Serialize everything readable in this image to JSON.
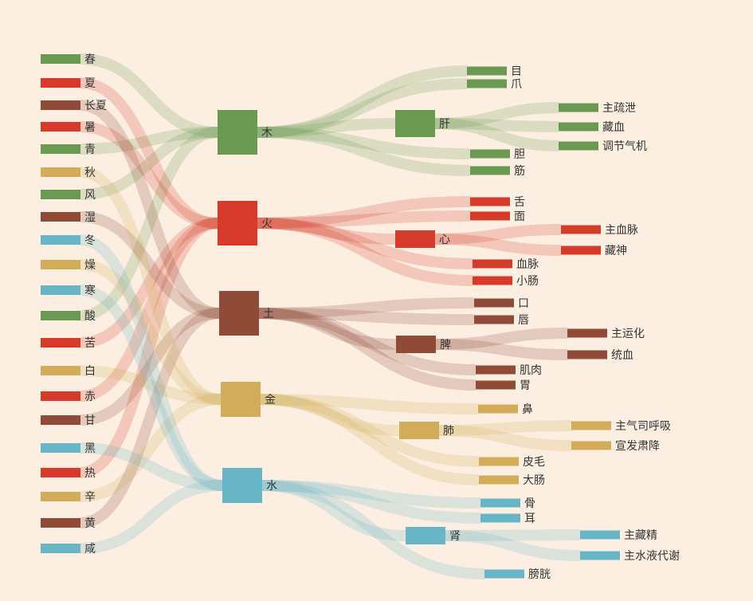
{
  "colors": {
    "background": "#fcefe2",
    "wood": "#6a9a52",
    "fire": "#d63a2a",
    "earth": "#8f4a38",
    "metal": "#d2ac58",
    "water": "#68b5c7"
  },
  "diagram": {
    "type": "sankey",
    "nodes": [
      {
        "id": "spring",
        "label": "春",
        "element": "wood"
      },
      {
        "id": "summer",
        "label": "夏",
        "element": "fire"
      },
      {
        "id": "late_summer",
        "label": "长夏",
        "element": "earth"
      },
      {
        "id": "summer_heat",
        "label": "暑",
        "element": "fire"
      },
      {
        "id": "green",
        "label": "青",
        "element": "wood"
      },
      {
        "id": "autumn",
        "label": "秋",
        "element": "metal"
      },
      {
        "id": "wind",
        "label": "风",
        "element": "wood"
      },
      {
        "id": "damp",
        "label": "湿",
        "element": "earth"
      },
      {
        "id": "winter",
        "label": "冬",
        "element": "water"
      },
      {
        "id": "dry",
        "label": "燥",
        "element": "metal"
      },
      {
        "id": "cold",
        "label": "寒",
        "element": "water"
      },
      {
        "id": "sour",
        "label": "酸",
        "element": "wood"
      },
      {
        "id": "bitter",
        "label": "苦",
        "element": "fire"
      },
      {
        "id": "white",
        "label": "白",
        "element": "metal"
      },
      {
        "id": "red",
        "label": "赤",
        "element": "fire"
      },
      {
        "id": "sweet",
        "label": "甘",
        "element": "earth"
      },
      {
        "id": "black",
        "label": "黑",
        "element": "water"
      },
      {
        "id": "heat",
        "label": "热",
        "element": "fire"
      },
      {
        "id": "pungent",
        "label": "辛",
        "element": "metal"
      },
      {
        "id": "yellow",
        "label": "黄",
        "element": "earth"
      },
      {
        "id": "salty",
        "label": "咸",
        "element": "water"
      },
      {
        "id": "wood",
        "label": "木",
        "element": "wood"
      },
      {
        "id": "fire",
        "label": "火",
        "element": "fire"
      },
      {
        "id": "earth",
        "label": "土",
        "element": "earth"
      },
      {
        "id": "metal",
        "label": "金",
        "element": "metal"
      },
      {
        "id": "water",
        "label": "水",
        "element": "water"
      },
      {
        "id": "liver",
        "label": "肝",
        "element": "wood"
      },
      {
        "id": "heart",
        "label": "心",
        "element": "fire"
      },
      {
        "id": "spleen",
        "label": "脾",
        "element": "earth"
      },
      {
        "id": "lung",
        "label": "肺",
        "element": "metal"
      },
      {
        "id": "kidney",
        "label": "肾",
        "element": "water"
      },
      {
        "id": "eye",
        "label": "目",
        "element": "wood"
      },
      {
        "id": "nail",
        "label": "爪",
        "element": "wood"
      },
      {
        "id": "gallbladder",
        "label": "胆",
        "element": "wood"
      },
      {
        "id": "tendon",
        "label": "筋",
        "element": "wood"
      },
      {
        "id": "tongue",
        "label": "舌",
        "element": "fire"
      },
      {
        "id": "face",
        "label": "面",
        "element": "fire"
      },
      {
        "id": "vessel",
        "label": "血脉",
        "element": "fire"
      },
      {
        "id": "small_intestine",
        "label": "小肠",
        "element": "fire"
      },
      {
        "id": "mouth",
        "label": "口",
        "element": "earth"
      },
      {
        "id": "lips",
        "label": "唇",
        "element": "earth"
      },
      {
        "id": "muscle",
        "label": "肌肉",
        "element": "earth"
      },
      {
        "id": "stomach",
        "label": "胃",
        "element": "earth"
      },
      {
        "id": "nose",
        "label": "鼻",
        "element": "metal"
      },
      {
        "id": "skin_hair",
        "label": "皮毛",
        "element": "metal"
      },
      {
        "id": "large_intestine",
        "label": "大肠",
        "element": "metal"
      },
      {
        "id": "bone",
        "label": "骨",
        "element": "water"
      },
      {
        "id": "ear",
        "label": "耳",
        "element": "water"
      },
      {
        "id": "bladder",
        "label": "膀胱",
        "element": "water"
      },
      {
        "id": "liver_f1",
        "label": "主疏泄",
        "element": "wood"
      },
      {
        "id": "liver_f2",
        "label": "藏血",
        "element": "wood"
      },
      {
        "id": "liver_f3",
        "label": "调节气机",
        "element": "wood"
      },
      {
        "id": "heart_f1",
        "label": "主血脉",
        "element": "fire"
      },
      {
        "id": "heart_f2",
        "label": "藏神",
        "element": "fire"
      },
      {
        "id": "spleen_f1",
        "label": "主运化",
        "element": "earth"
      },
      {
        "id": "spleen_f2",
        "label": "统血",
        "element": "earth"
      },
      {
        "id": "lung_f1",
        "label": "主气司呼吸",
        "element": "metal"
      },
      {
        "id": "lung_f2",
        "label": "宣发肃降",
        "element": "metal"
      },
      {
        "id": "kidney_f1",
        "label": "主藏精",
        "element": "water"
      },
      {
        "id": "kidney_f2",
        "label": "主水液代谢",
        "element": "water"
      }
    ],
    "links": [
      [
        "spring",
        "wood"
      ],
      [
        "green",
        "wood"
      ],
      [
        "wind",
        "wood"
      ],
      [
        "sour",
        "wood"
      ],
      [
        "summer",
        "fire"
      ],
      [
        "summer_heat",
        "fire"
      ],
      [
        "bitter",
        "fire"
      ],
      [
        "red",
        "fire"
      ],
      [
        "heat",
        "fire"
      ],
      [
        "late_summer",
        "earth"
      ],
      [
        "damp",
        "earth"
      ],
      [
        "sweet",
        "earth"
      ],
      [
        "yellow",
        "earth"
      ],
      [
        "autumn",
        "metal"
      ],
      [
        "dry",
        "metal"
      ],
      [
        "white",
        "metal"
      ],
      [
        "pungent",
        "metal"
      ],
      [
        "winter",
        "water"
      ],
      [
        "cold",
        "water"
      ],
      [
        "black",
        "water"
      ],
      [
        "salty",
        "water"
      ],
      [
        "wood",
        "liver"
      ],
      [
        "wood",
        "eye"
      ],
      [
        "wood",
        "nail"
      ],
      [
        "wood",
        "gallbladder"
      ],
      [
        "wood",
        "tendon"
      ],
      [
        "fire",
        "heart"
      ],
      [
        "fire",
        "tongue"
      ],
      [
        "fire",
        "face"
      ],
      [
        "fire",
        "vessel"
      ],
      [
        "fire",
        "small_intestine"
      ],
      [
        "earth",
        "spleen"
      ],
      [
        "earth",
        "mouth"
      ],
      [
        "earth",
        "lips"
      ],
      [
        "earth",
        "muscle"
      ],
      [
        "earth",
        "stomach"
      ],
      [
        "metal",
        "lung"
      ],
      [
        "metal",
        "nose"
      ],
      [
        "metal",
        "skin_hair"
      ],
      [
        "metal",
        "large_intestine"
      ],
      [
        "water",
        "kidney"
      ],
      [
        "water",
        "bone"
      ],
      [
        "water",
        "ear"
      ],
      [
        "water",
        "bladder"
      ],
      [
        "liver",
        "liver_f1"
      ],
      [
        "liver",
        "liver_f2"
      ],
      [
        "liver",
        "liver_f3"
      ],
      [
        "heart",
        "heart_f1"
      ],
      [
        "heart",
        "heart_f2"
      ],
      [
        "spleen",
        "spleen_f1"
      ],
      [
        "spleen",
        "spleen_f2"
      ],
      [
        "lung",
        "lung_f1"
      ],
      [
        "lung",
        "lung_f2"
      ],
      [
        "kidney",
        "kidney_f1"
      ],
      [
        "kidney",
        "kidney_f2"
      ]
    ]
  }
}
